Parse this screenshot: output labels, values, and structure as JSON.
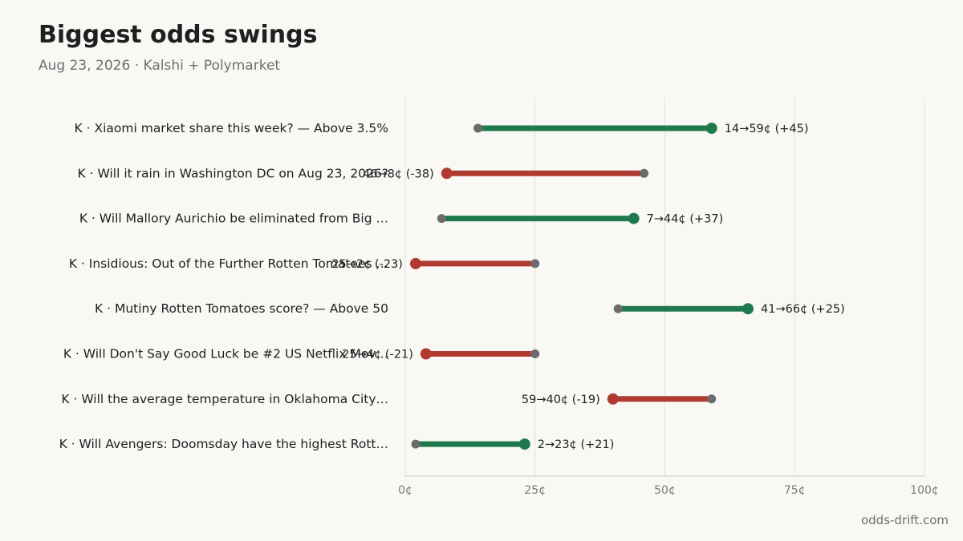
{
  "header": {
    "title": "Biggest odds swings",
    "subtitle": "Aug 23, 2026 · Kalshi + Polymarket"
  },
  "footer": {
    "credit": "odds-drift.com"
  },
  "colors": {
    "up": "#1e7a4c",
    "down": "#b03a30",
    "start_dot": "#6b6b6b",
    "grid": "#e2e0db",
    "axis": "#cfcdc8"
  },
  "chart_data": {
    "type": "dumbbell",
    "xlim": [
      0,
      100
    ],
    "x_unit": "¢",
    "x_ticks": [
      {
        "value": 0,
        "label": "0¢"
      },
      {
        "value": 25,
        "label": "25¢"
      },
      {
        "value": 50,
        "label": "50¢"
      },
      {
        "value": 75,
        "label": "75¢"
      },
      {
        "value": 100,
        "label": "100¢"
      }
    ],
    "rows": [
      {
        "label": "K · Xiaomi market share this week? — Above 3.5%",
        "from": 14,
        "to": 59,
        "value_label": "14→59¢ (+45)"
      },
      {
        "label": "K · Will it rain in Washington DC on Aug 23, 2026?",
        "from": 46,
        "to": 8,
        "value_label": "46→8¢ (-38)"
      },
      {
        "label": "K · Will Mallory Aurichio be eliminated from Big …",
        "from": 7,
        "to": 44,
        "value_label": "7→44¢ (+37)"
      },
      {
        "label": "K · Insidious: Out of the Further Rotten Tomatoes …",
        "from": 25,
        "to": 2,
        "value_label": "25→2¢ (-23)"
      },
      {
        "label": "K · Mutiny Rotten Tomatoes score? — Above 50",
        "from": 41,
        "to": 66,
        "value_label": "41→66¢ (+25)"
      },
      {
        "label": "K · Will Don't Say Good Luck be #2 US Netflix Mov…",
        "from": 25,
        "to": 4,
        "value_label": "25→4¢ (-21)"
      },
      {
        "label": "K · Will the average temperature in Oklahoma City…",
        "from": 59,
        "to": 40,
        "value_label": "59→40¢ (-19)"
      },
      {
        "label": "K · Will Avengers: Doomsday have the highest Rott…",
        "from": 2,
        "to": 23,
        "value_label": "2→23¢ (+21)"
      }
    ]
  }
}
